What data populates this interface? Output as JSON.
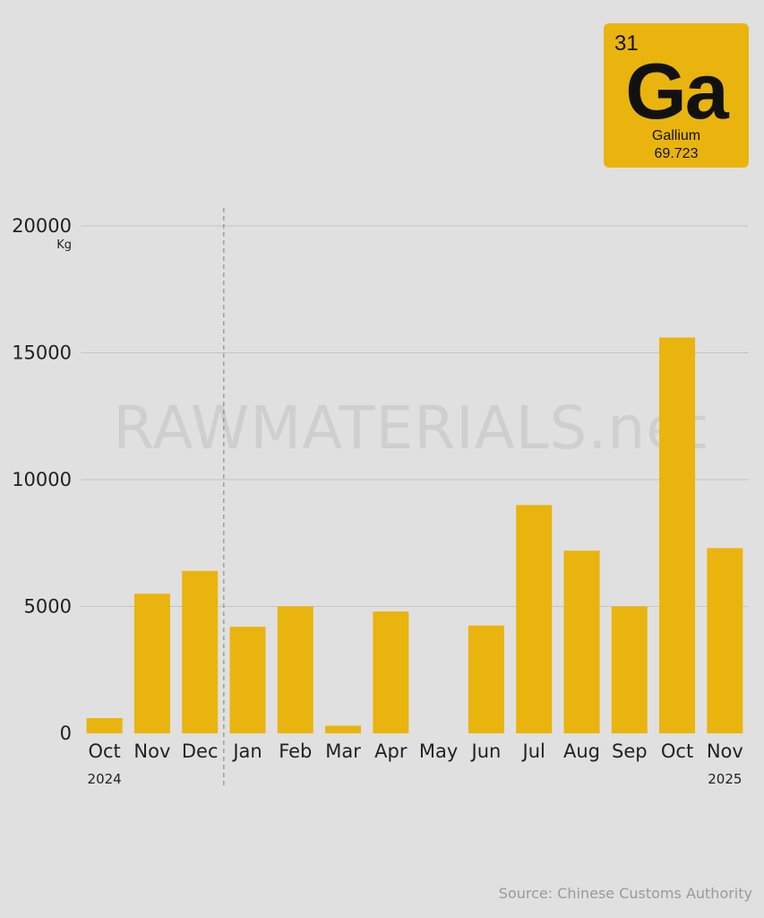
{
  "element_tile": {
    "atomic_number": "31",
    "symbol": "Ga",
    "name": "Gallium",
    "atomic_mass": "69.723",
    "color": "#e9b40d"
  },
  "watermark": "RAWMATERIALS.net",
  "source": "Source: Chinese Customs Authority",
  "chart_data": {
    "type": "bar",
    "categories": [
      "Oct",
      "Nov",
      "Dec",
      "Jan",
      "Feb",
      "Mar",
      "Apr",
      "May",
      "Jun",
      "Jul",
      "Aug",
      "Sep",
      "Oct",
      "Nov"
    ],
    "values": [
      600,
      5500,
      6400,
      4200,
      5000,
      300,
      4800,
      0,
      4250,
      9000,
      7200,
      5000,
      15600,
      7300
    ],
    "year_labels": [
      {
        "label": "2024",
        "category_index": 0
      },
      {
        "label": "2025",
        "category_index": 13
      }
    ],
    "year_divider_after_index": 2,
    "ylim": [
      0,
      20000
    ],
    "yticks": [
      0,
      5000,
      10000,
      15000,
      20000
    ],
    "unit_label": "Kg",
    "title": "",
    "xlabel": "",
    "ylabel": "",
    "bar_color": "#e9b40d",
    "grid": true
  }
}
